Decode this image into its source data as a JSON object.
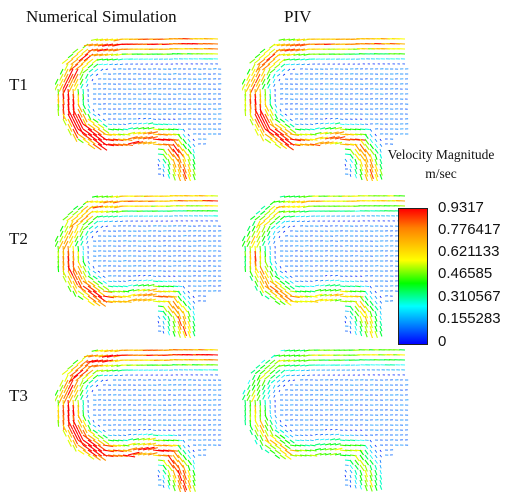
{
  "columns": [
    "Numerical Simulation",
    "PIV"
  ],
  "rows": [
    "T1",
    "T2",
    "T3"
  ],
  "legend": {
    "title": "Velocity Magnitude",
    "unit": "m/sec",
    "ticks": [
      "0.9317",
      "0.776417",
      "0.621133",
      "0.46585",
      "0.310567",
      "0.155283",
      "0"
    ]
  },
  "colors": {
    "high": "#ff0000",
    "upper": "#ff8000",
    "mid_high": "#ffff00",
    "mid": "#00ff00",
    "mid_low": "#00ffff",
    "lower": "#0080ff",
    "low": "#0000ff"
  },
  "panels": [
    {
      "row": "T1",
      "column": "Numerical Simulation",
      "intensity": 1.0
    },
    {
      "row": "T1",
      "column": "PIV",
      "intensity": 0.9
    },
    {
      "row": "T2",
      "column": "Numerical Simulation",
      "intensity": 0.85
    },
    {
      "row": "T2",
      "column": "PIV",
      "intensity": 0.7
    },
    {
      "row": "T3",
      "column": "Numerical Simulation",
      "intensity": 1.0
    },
    {
      "row": "T3",
      "column": "PIV",
      "intensity": 0.6
    }
  ]
}
